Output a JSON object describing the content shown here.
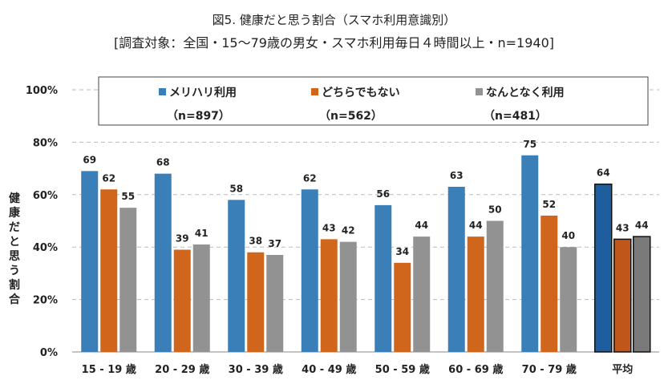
{
  "title": "図5. 健康だと思う割合（スマホ利用意識別）",
  "subtitle": "[調査対象：全国・15～79歳の男女・スマホ利用毎日４時間以上・n=1940]",
  "chart_data": {
    "type": "bar",
    "ylabel": "健康だと思う割合",
    "ylim": [
      0,
      100
    ],
    "yticks": [
      "0%",
      "20%",
      "40%",
      "60%",
      "80%",
      "100%"
    ],
    "grid": true,
    "legend_position": "top",
    "categories": [
      "15 - 19 歳",
      "20 - 29 歳",
      "30 - 39 歳",
      "40 - 49 歳",
      "50 - 59 歳",
      "60 - 69 歳",
      "70 - 79 歳",
      "平均"
    ],
    "series": [
      {
        "name": "メリハリ利用",
        "n": "（n=897）",
        "color": "#3a7fb8",
        "avg_color": "#1f5e9e",
        "values": [
          69,
          68,
          58,
          62,
          56,
          63,
          75,
          64
        ]
      },
      {
        "name": "どちらでもない",
        "n": "（n=562）",
        "color": "#d0661c",
        "avg_color": "#c0561a",
        "values": [
          62,
          39,
          38,
          43,
          34,
          44,
          52,
          43
        ]
      },
      {
        "name": "なんとなく利用",
        "n": "（n=481）",
        "color": "#929292",
        "avg_color": "#7a7a7a",
        "values": [
          55,
          41,
          37,
          42,
          44,
          50,
          40,
          44
        ]
      }
    ]
  }
}
